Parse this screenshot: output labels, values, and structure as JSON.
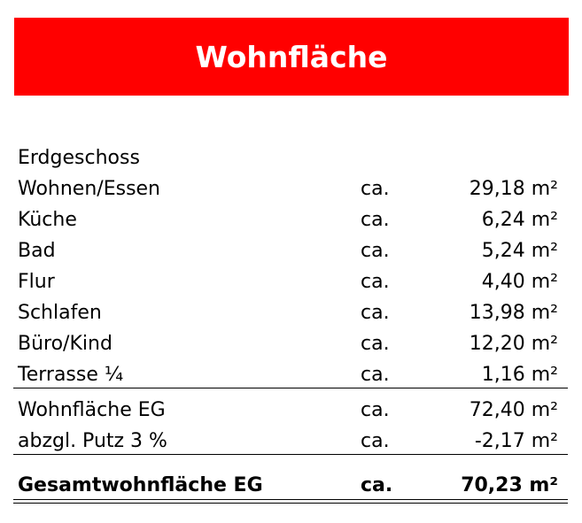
{
  "title": "Wohnfläche",
  "section": "Erdgeschoss",
  "rooms": [
    {
      "name": "Wohnen/Essen",
      "prefix": "ca.",
      "value": "29,18 m²"
    },
    {
      "name": "Küche",
      "prefix": "ca.",
      "value": "6,24 m²"
    },
    {
      "name": "Bad",
      "prefix": "ca.",
      "value": "5,24 m²"
    },
    {
      "name": "Flur",
      "prefix": "ca.",
      "value": "4,40 m²"
    },
    {
      "name": "Schlafen",
      "prefix": "ca.",
      "value": "13,98 m²"
    },
    {
      "name": "Büro/Kind",
      "prefix": "ca.",
      "value": "12,20 m²"
    },
    {
      "name": "Terrasse ¼",
      "prefix": "ca.",
      "value": "1,16 m²"
    }
  ],
  "subtotals": [
    {
      "name": "Wohnfläche EG",
      "prefix": "ca.",
      "value": "72,40 m²"
    },
    {
      "name": "abzgl. Putz 3 %",
      "prefix": "ca.",
      "value": "-2,17 m²"
    }
  ],
  "total": {
    "name": "Gesamtwohnfläche EG",
    "prefix": "ca.",
    "value": "70,23 m²"
  },
  "colors": {
    "banner": "#ff0000",
    "title": "#ffffff"
  }
}
